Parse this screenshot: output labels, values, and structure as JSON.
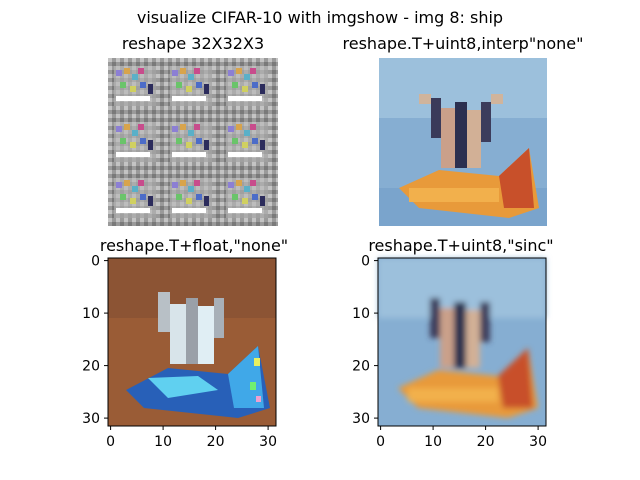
{
  "figure": {
    "suptitle": "visualize CIFAR-10 with imgshow - img 8: ship"
  },
  "colors": {
    "sky": "#7aa6cc",
    "sand": "#a0623c",
    "raft": "#e89a3a",
    "axis": "#000000"
  },
  "chart_data": [
    {
      "type": "heatmap",
      "title": "reshape 32X32X3",
      "axes_visible": false,
      "content": "scrambled 3x3 tiled reshape of the ship image (gray with colored noise)"
    },
    {
      "type": "heatmap",
      "title": "reshape.T+uint8,interp\"none\"",
      "axes_visible": false,
      "content": "ship image (people on an inflatable raft), pixelated"
    },
    {
      "type": "heatmap",
      "title": "reshape.T+float,\"none\"",
      "axes_visible": true,
      "xticks": [
        "0",
        "10",
        "20",
        "30"
      ],
      "yticks": [
        "0",
        "10",
        "20",
        "30"
      ],
      "xlim": [
        -0.5,
        31.5
      ],
      "ylim": [
        31.5,
        -0.5
      ],
      "content": "ship image with float color artifacts (brown background, cyan/blue raft)"
    },
    {
      "type": "heatmap",
      "title": "reshape.T+uint8,\"sinc\"",
      "axes_visible": true,
      "xticks": [
        "0",
        "10",
        "20",
        "30"
      ],
      "yticks": [
        "0",
        "10",
        "20",
        "30"
      ],
      "xlim": [
        -0.5,
        31.5
      ],
      "ylim": [
        31.5,
        -0.5
      ],
      "content": "ship image, sinc-interpolated (smooth)"
    }
  ]
}
